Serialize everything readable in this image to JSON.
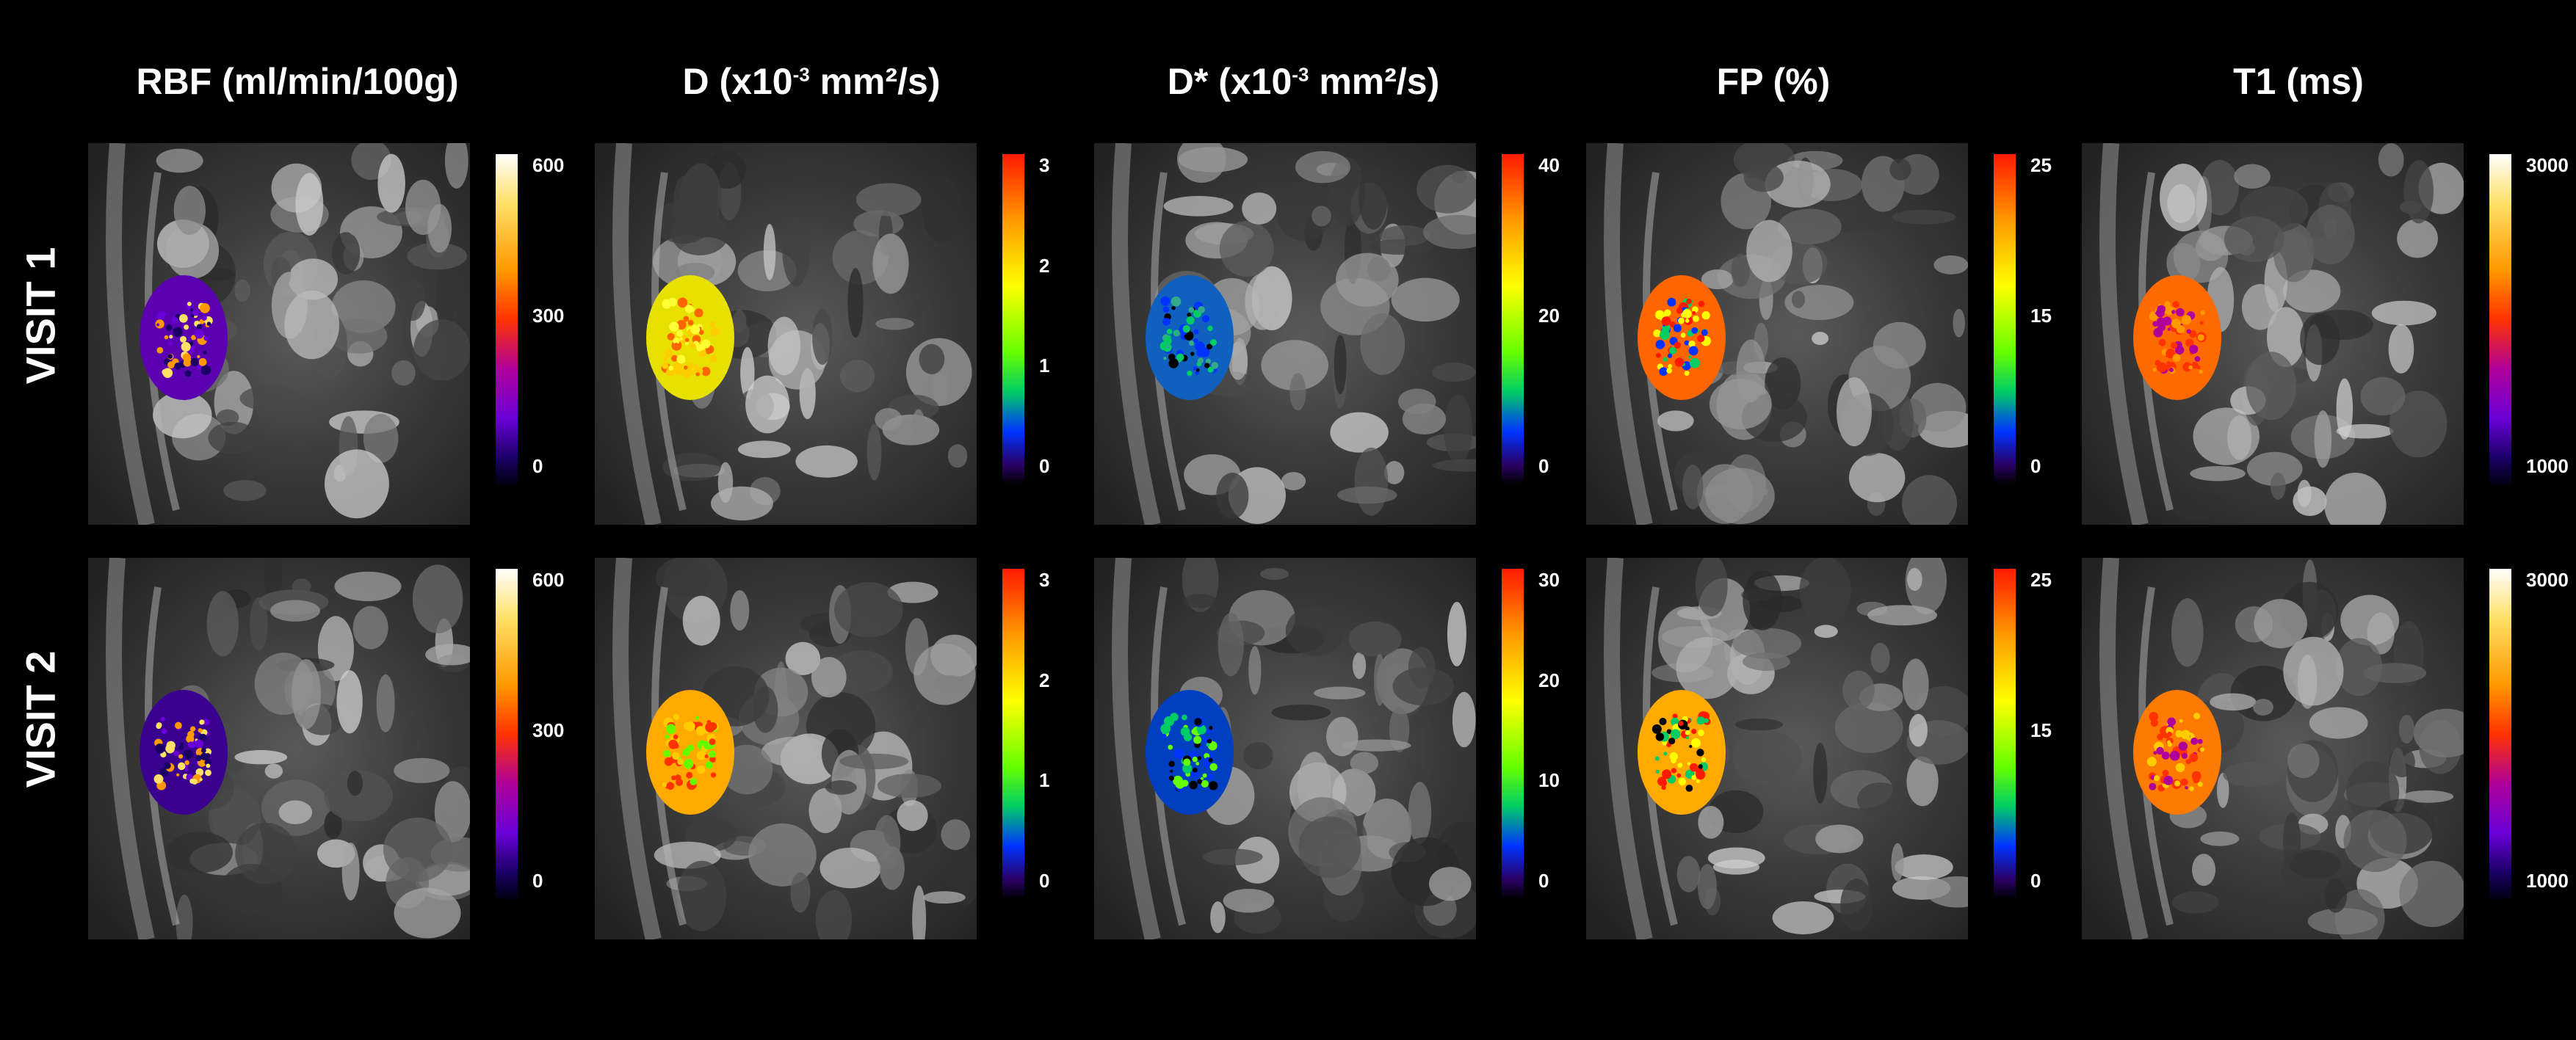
{
  "columns": [
    {
      "id": "rbf",
      "title_main": "RBF  (ml/min/100g)",
      "title_unit": "",
      "exp": "",
      "colormap": "hot",
      "ticks": [
        "600",
        "300",
        "0"
      ]
    },
    {
      "id": "d",
      "title_main": "D (x10",
      "exp": "-3",
      "title_unit": " mm²/s)",
      "colormap": "spectral",
      "ticks": [
        "3",
        "2",
        "1",
        "0"
      ]
    },
    {
      "id": "dstar",
      "title_main": "D* (x10",
      "exp": "-3",
      "title_unit": " mm²/s)",
      "colormap": "spectral",
      "ticks": [
        "40",
        "20",
        "0"
      ],
      "ticks_v2": [
        "30",
        "20",
        "10",
        "0"
      ]
    },
    {
      "id": "fp",
      "title_main": "FP (%)",
      "title_unit": "",
      "exp": "",
      "colormap": "spectral",
      "ticks": [
        "25",
        "15",
        "0"
      ]
    },
    {
      "id": "t1",
      "title_main": "T1 (ms)",
      "title_unit": "",
      "exp": "",
      "colormap": "hot",
      "ticks": [
        "3000",
        "1000"
      ]
    }
  ],
  "rows": [
    {
      "label": "VISIT 1"
    },
    {
      "label": "VISIT 2"
    }
  ],
  "colors": {
    "background": "#000000",
    "text": "#ffffff",
    "hot_map": [
      "#ffffff",
      "#ffe066",
      "#ff9900",
      "#ff3300",
      "#b0009a",
      "#6a00d8",
      "#1a0066",
      "#000010"
    ],
    "spectral_map": [
      "#ff1a00",
      "#ff9900",
      "#ffff00",
      "#66ff00",
      "#00cc66",
      "#0033ff",
      "#2a0066",
      "#000000"
    ]
  }
}
